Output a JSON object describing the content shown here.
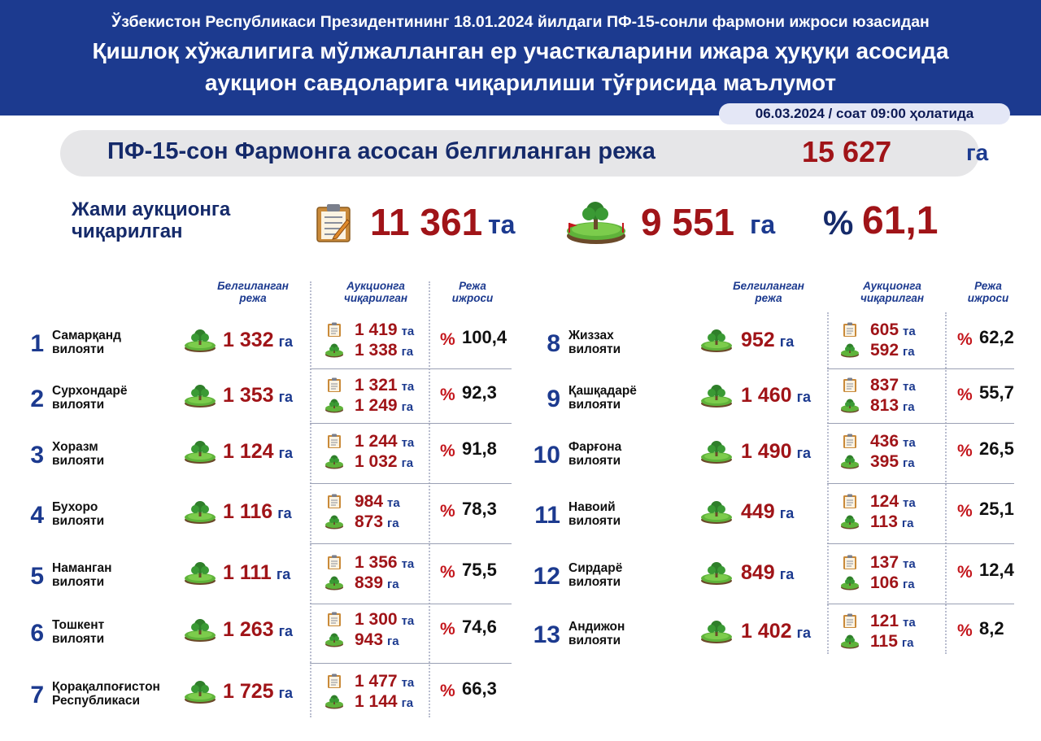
{
  "header": {
    "line1": "Ўзбекистон Республикаси Президентининг 18.01.2024 йилдаги ПФ-15-сонли фармони ижроси юзасидан",
    "line2": "Қишлоқ хўжалигига мўлжалланган ер участкаларини ижара ҳуқуқи асосида",
    "line3": "аукцион савдоларига чиқарилиши тўғрисида маълумот",
    "date": "06.03.2024 / соат 09:00 ҳолатида"
  },
  "plan": {
    "label": "ПФ-15-сон Фармонга асосан белгиланган режа",
    "value": "15 627",
    "unit": "га"
  },
  "summary": {
    "label_line1": "Жами аукционга",
    "label_line2": "чиқарилган",
    "count": "11 361",
    "count_unit": "та",
    "area": "9 551",
    "area_unit": "га",
    "pct_sign": "%",
    "pct": "61,1"
  },
  "columns": {
    "plan_line1": "Белгиланган",
    "plan_line2": "режа",
    "auction_line1": "Аукционга",
    "auction_line2": "чиқарилган",
    "exec_line1": "Режа",
    "exec_line2": "ижроси"
  },
  "units": {
    "ga": "га",
    "ta": "та",
    "pct": "%"
  },
  "regions_left": [
    {
      "num": "1",
      "name1": "Самарқанд",
      "name2": "вилояти",
      "plan": "1 332",
      "count": "1 419",
      "area": "1 338",
      "pct": "100,4"
    },
    {
      "num": "2",
      "name1": "Сурхондарё",
      "name2": "вилояти",
      "plan": "1 353",
      "count": "1 321",
      "area": "1 249",
      "pct": "92,3"
    },
    {
      "num": "3",
      "name1": "Хоразм",
      "name2": "вилояти",
      "plan": "1 124",
      "count": "1 244",
      "area": "1 032",
      "pct": "91,8"
    },
    {
      "num": "4",
      "name1": "Бухоро",
      "name2": "вилояти",
      "plan": "1 116",
      "count": "984",
      "area": "873",
      "pct": "78,3"
    },
    {
      "num": "5",
      "name1": "Наманган",
      "name2": "вилояти",
      "plan": "1 111",
      "count": "1 356",
      "area": "839",
      "pct": "75,5"
    },
    {
      "num": "6",
      "name1": "Тошкент",
      "name2": "вилояти",
      "plan": "1 263",
      "count": "1 300",
      "area": "943",
      "pct": "74,6"
    },
    {
      "num": "7",
      "name1": "Қорақалпоғистон",
      "name2": "Республикаси",
      "plan": "1 725",
      "count": "1 477",
      "area": "1 144",
      "pct": "66,3"
    }
  ],
  "regions_right": [
    {
      "num": "8",
      "name1": "Жиззах",
      "name2": "вилояти",
      "plan": "952",
      "count": "605",
      "area": "592",
      "pct": "62,2"
    },
    {
      "num": "9",
      "name1": "Қашқадарё",
      "name2": "вилояти",
      "plan": "1 460",
      "count": "837",
      "area": "813",
      "pct": "55,7"
    },
    {
      "num": "10",
      "name1": "Фарғона",
      "name2": "вилояти",
      "plan": "1 490",
      "count": "436",
      "area": "395",
      "pct": "26,5"
    },
    {
      "num": "11",
      "name1": "Навоий",
      "name2": "вилояти",
      "plan": "449",
      "count": "124",
      "area": "113",
      "pct": "25,1"
    },
    {
      "num": "12",
      "name1": "Сирдарё",
      "name2": "вилояти",
      "plan": "849",
      "count": "137",
      "area": "106",
      "pct": "12,4"
    },
    {
      "num": "13",
      "name1": "Андижон",
      "name2": "вилояти",
      "plan": "1 402",
      "count": "121",
      "area": "115",
      "pct": "8,2"
    }
  ],
  "colors": {
    "navy": "#1c3a8f",
    "red": "#a01418",
    "grey_bar": "#e6e6e8"
  },
  "icons": {
    "count_icon": "clipboard-icon",
    "area_icon": "land-plot-icon"
  }
}
